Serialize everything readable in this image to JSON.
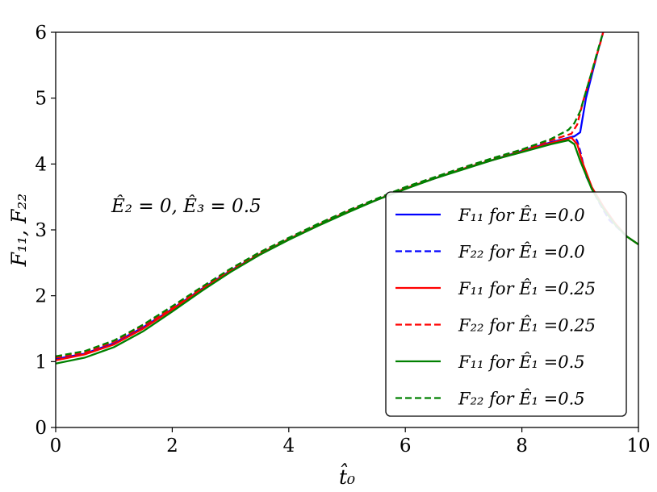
{
  "chart_data": {
    "type": "line",
    "title": "",
    "xlabel": "t̂₀",
    "ylabel": "F₁₁, F₂₂",
    "xlim": [
      0,
      10
    ],
    "ylim": [
      0,
      6
    ],
    "x_ticks": [
      "0",
      "2",
      "4",
      "6",
      "8",
      "10"
    ],
    "y_ticks": [
      "0",
      "1",
      "2",
      "3",
      "4",
      "5",
      "6"
    ],
    "annotation": "Ê₂ = 0, Ê₃ = 0.5",
    "legend_position": "center-right",
    "series": [
      {
        "name": "F₁₁ for Ê₁ =0.0",
        "color": "#0000ff",
        "dash": "solid",
        "x": [
          0,
          0.5,
          1,
          1.5,
          2,
          2.5,
          3,
          3.5,
          4,
          4.5,
          5,
          5.5,
          6,
          6.5,
          7,
          7.5,
          8,
          8.5,
          8.9,
          8.95,
          9.0,
          9.1,
          9.2,
          9.3,
          9.4
        ],
        "y": [
          1.04,
          1.12,
          1.28,
          1.52,
          1.8,
          2.1,
          2.38,
          2.63,
          2.86,
          3.07,
          3.27,
          3.45,
          3.63,
          3.78,
          3.93,
          4.06,
          4.2,
          4.33,
          4.42,
          4.45,
          4.48,
          5.0,
          5.35,
          5.7,
          6.02
        ]
      },
      {
        "name": "F₂₂ for Ê₁ =0.0",
        "color": "#0000ff",
        "dash": "dashed",
        "x": [
          0,
          0.5,
          1,
          1.5,
          2,
          2.5,
          3,
          3.5,
          4,
          4.5,
          5,
          5.5,
          6,
          6.5,
          7,
          7.5,
          8,
          8.5,
          8.9,
          8.95,
          9.0,
          9.1,
          9.3,
          9.5,
          9.8,
          10
        ],
        "y": [
          1.04,
          1.12,
          1.28,
          1.52,
          1.8,
          2.1,
          2.38,
          2.63,
          2.86,
          3.07,
          3.27,
          3.45,
          3.63,
          3.78,
          3.93,
          4.06,
          4.2,
          4.33,
          4.42,
          4.35,
          4.2,
          3.82,
          3.45,
          3.15,
          2.9,
          2.78
        ]
      },
      {
        "name": "F₁₁ for Ê₁ =0.25",
        "color": "#ff0000",
        "dash": "solid",
        "x": [
          0,
          0.5,
          1,
          1.5,
          2,
          2.5,
          3,
          3.5,
          4,
          4.5,
          5,
          5.5,
          6,
          6.5,
          7,
          7.5,
          8,
          8.5,
          8.85,
          8.95,
          9.05,
          9.2,
          9.4,
          9.6,
          9.8,
          10
        ],
        "y": [
          1.02,
          1.11,
          1.26,
          1.5,
          1.79,
          2.09,
          2.37,
          2.63,
          2.86,
          3.07,
          3.27,
          3.45,
          3.63,
          3.78,
          3.93,
          4.06,
          4.19,
          4.32,
          4.4,
          4.3,
          4.0,
          3.65,
          3.35,
          3.1,
          2.9,
          2.78
        ]
      },
      {
        "name": "F₂₂ for Ê₁ =0.25",
        "color": "#ff0000",
        "dash": "dashed",
        "x": [
          0,
          0.5,
          1,
          1.5,
          2,
          2.5,
          3,
          3.5,
          4,
          4.5,
          5,
          5.5,
          6,
          6.5,
          7,
          7.5,
          8,
          8.5,
          8.85,
          8.95,
          9.05,
          9.15,
          9.25,
          9.35,
          9.4
        ],
        "y": [
          1.06,
          1.14,
          1.3,
          1.54,
          1.82,
          2.12,
          2.4,
          2.65,
          2.87,
          3.08,
          3.28,
          3.46,
          3.64,
          3.79,
          3.94,
          4.08,
          4.21,
          4.36,
          4.46,
          4.6,
          4.95,
          5.25,
          5.55,
          5.85,
          6.02
        ]
      },
      {
        "name": "F₁₁ for Ê₁ =0.5",
        "color": "#008000",
        "dash": "solid",
        "x": [
          0,
          0.5,
          1,
          1.5,
          2,
          2.5,
          3,
          3.5,
          4,
          4.5,
          5,
          5.5,
          6,
          6.5,
          7,
          7.5,
          8,
          8.5,
          8.8,
          8.9,
          9.0,
          9.2,
          9.4,
          9.6,
          9.8,
          10
        ],
        "y": [
          0.97,
          1.06,
          1.22,
          1.46,
          1.76,
          2.07,
          2.36,
          2.62,
          2.85,
          3.06,
          3.26,
          3.45,
          3.62,
          3.78,
          3.92,
          4.06,
          4.18,
          4.3,
          4.36,
          4.3,
          4.05,
          3.62,
          3.32,
          3.08,
          2.9,
          2.78
        ]
      },
      {
        "name": "F₂₂ for Ê₁ =0.5",
        "color": "#008000",
        "dash": "dashed",
        "x": [
          0,
          0.5,
          1,
          1.5,
          2,
          2.5,
          3,
          3.5,
          4,
          4.5,
          5,
          5.5,
          6,
          6.5,
          7,
          7.5,
          8,
          8.5,
          8.8,
          8.9,
          9.0,
          9.1,
          9.2,
          9.3,
          9.4
        ],
        "y": [
          1.08,
          1.16,
          1.32,
          1.56,
          1.84,
          2.13,
          2.41,
          2.66,
          2.88,
          3.09,
          3.29,
          3.47,
          3.65,
          3.8,
          3.95,
          4.09,
          4.22,
          4.38,
          4.52,
          4.62,
          4.8,
          5.1,
          5.4,
          5.72,
          6.02
        ]
      }
    ]
  }
}
